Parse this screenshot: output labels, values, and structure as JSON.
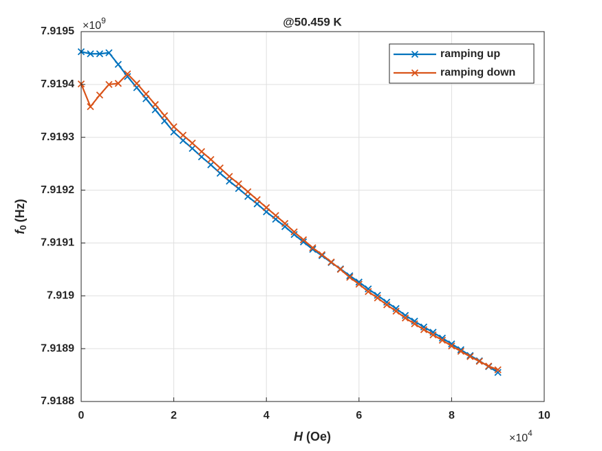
{
  "chart_data": {
    "type": "line",
    "title": "@50.459 K",
    "xlabel": {
      "symbol": "H",
      "unit": "(Oe)"
    },
    "ylabel": {
      "symbol": "f",
      "subscript": "0",
      "unit": "(Hz)"
    },
    "x_multiplier": {
      "base": "×10",
      "power": "4"
    },
    "y_multiplier": {
      "base": "×10",
      "power": "9"
    },
    "x": [
      0,
      0.2,
      0.4,
      0.6,
      0.8,
      1.0,
      1.2,
      1.4,
      1.6,
      1.8,
      2.0,
      2.2,
      2.4,
      2.6,
      2.8,
      3.0,
      3.2,
      3.4,
      3.6,
      3.8,
      4.0,
      4.2,
      4.4,
      4.6,
      4.8,
      5.0,
      5.2,
      5.4,
      5.6,
      5.8,
      6.0,
      6.2,
      6.4,
      6.6,
      6.8,
      7.0,
      7.2,
      7.4,
      7.6,
      7.8,
      8.0,
      8.2,
      8.4,
      8.6,
      8.8,
      9.0
    ],
    "series": [
      {
        "name": "ramping up",
        "color": "#0072bd",
        "values": [
          7.919462,
          7.919458,
          7.919458,
          7.91946,
          7.919438,
          7.919415,
          7.919394,
          7.919373,
          7.919352,
          7.919331,
          7.91931,
          7.919294,
          7.919279,
          7.919263,
          7.919248,
          7.919232,
          7.919217,
          7.919203,
          7.919188,
          7.919174,
          7.919159,
          7.919145,
          7.919131,
          7.919116,
          7.919102,
          7.919088,
          7.919076,
          7.919063,
          7.919051,
          7.919038,
          7.919026,
          7.919013,
          7.919001,
          7.918988,
          7.918976,
          7.918963,
          7.918952,
          7.918941,
          7.918931,
          7.91892,
          7.918909,
          7.918898,
          7.918887,
          7.918877,
          7.918866,
          7.918855
        ]
      },
      {
        "name": "ramping down",
        "color": "#d95319",
        "values": [
          7.919401,
          7.919358,
          7.91938,
          7.9194,
          7.919402,
          7.91942,
          7.919402,
          7.919382,
          7.919362,
          7.919341,
          7.91932,
          7.919304,
          7.919289,
          7.919273,
          7.919258,
          7.919242,
          7.919226,
          7.919212,
          7.919197,
          7.919182,
          7.919167,
          7.919152,
          7.919137,
          7.919121,
          7.919106,
          7.919091,
          7.919078,
          7.919064,
          7.91905,
          7.919035,
          7.919022,
          7.919008,
          7.918996,
          7.918983,
          7.918971,
          7.918958,
          7.918947,
          7.918936,
          7.918926,
          7.918916,
          7.918905,
          7.918895,
          7.918885,
          7.918876,
          7.918867,
          7.91886
        ]
      }
    ],
    "xlim": [
      0,
      10
    ],
    "xticks": [
      0,
      2,
      4,
      6,
      8,
      10
    ],
    "ylim": [
      7.9188,
      7.9195
    ],
    "yticks": [
      7.9188,
      7.9189,
      7.919,
      7.9191,
      7.9192,
      7.9193,
      7.9194,
      7.9195
    ],
    "grid": true,
    "legend": "upper right",
    "marker": "x"
  }
}
